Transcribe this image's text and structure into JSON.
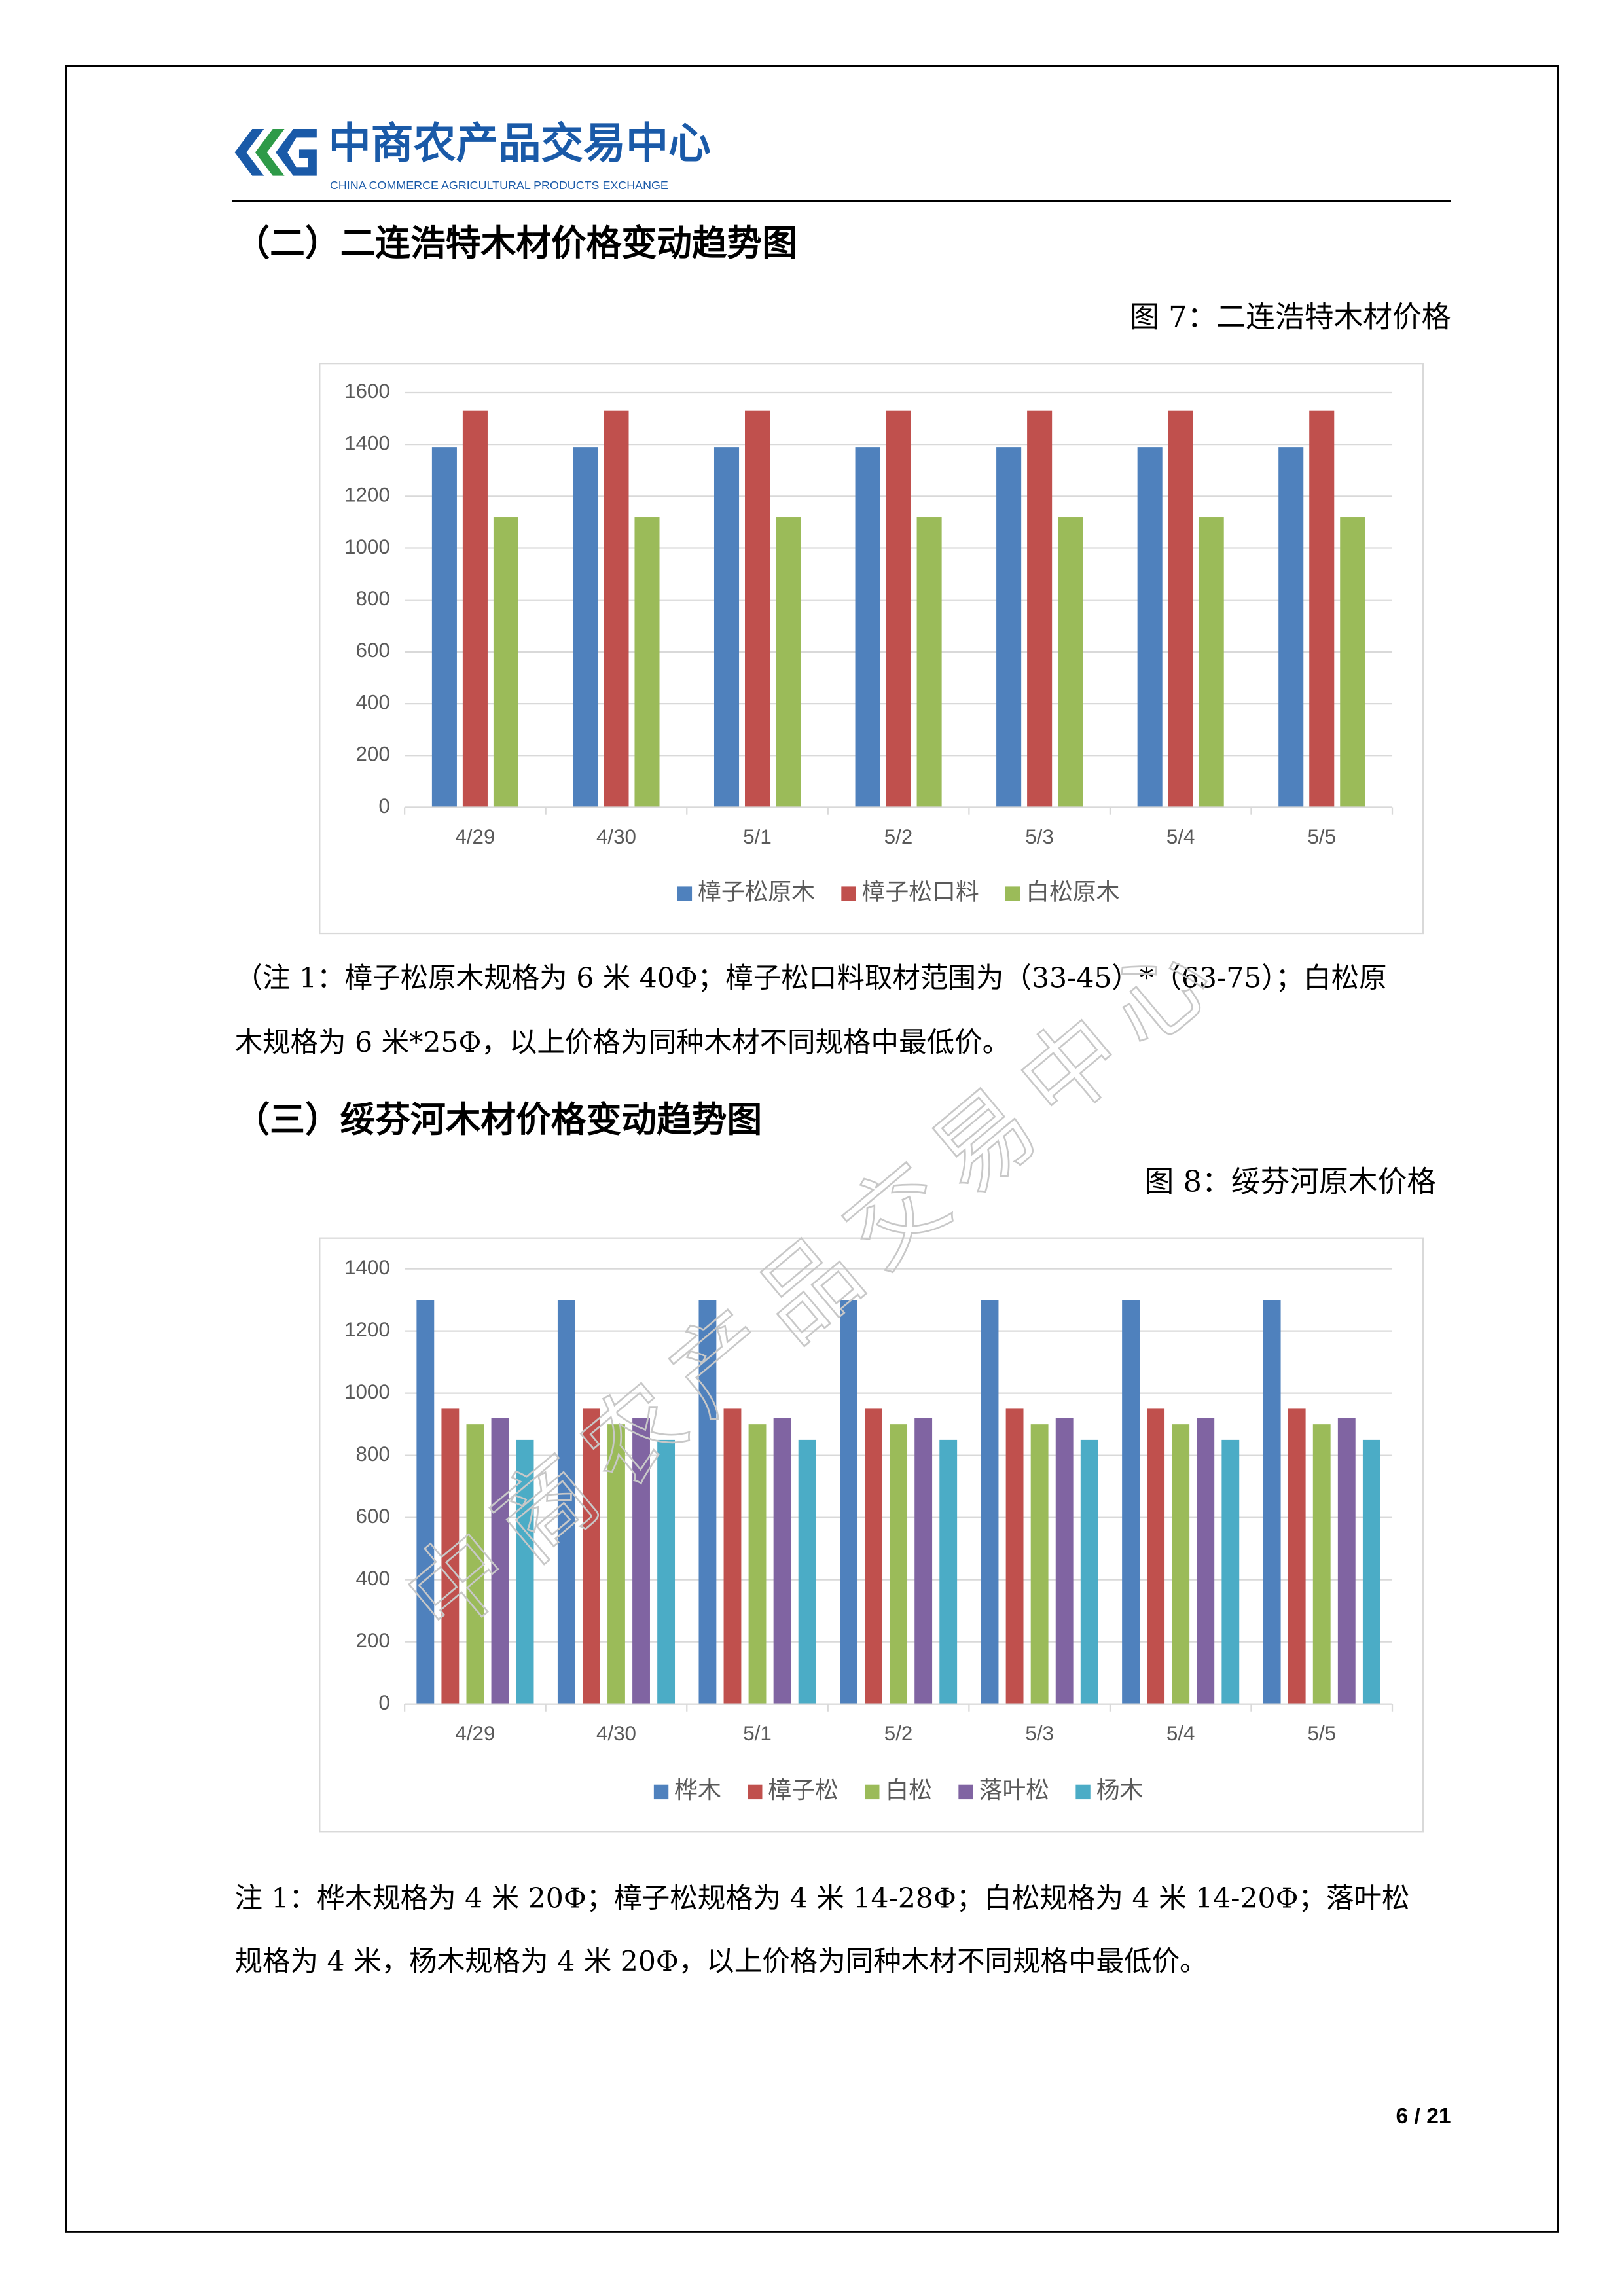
{
  "header": {
    "logo": "中商农产品交易中心",
    "logo_en": "CHINA COMMERCE AGRICULTURAL PRODUCTS EXCHANGE"
  },
  "sections": [
    {
      "heading": "（二）二连浩特木材价格变动趋势图",
      "note": [
        "（注 1：樟子松原木规格为 6 米 40Φ；樟子松口料取材范围为（33-45）*（63-75）；白松原",
        "木规格为 6 米*25Φ，以上价格为同种木材不同规格中最低价。"
      ]
    },
    {
      "heading": "（三）绥芬河木材价格变动趋势图",
      "note": [
        "注 1：桦木规格为 4 米 20Φ；樟子松规格为 4 米 14-28Φ；白松规格为 4 米 14-20Φ；落叶松",
        "规格为 4 米，杨木规格为 4 米 20Φ，以上价格为同种木材不同规格中最低价。"
      ]
    }
  ],
  "chart_data": [
    {
      "type": "bar",
      "title": "图 7：二连浩特木材价格",
      "categories": [
        "4/29",
        "4/30",
        "5/1",
        "5/2",
        "5/3",
        "5/4",
        "5/5"
      ],
      "series": [
        {
          "name": "樟子松原木",
          "color": "#4f81bd",
          "values": [
            1390,
            1390,
            1390,
            1390,
            1390,
            1390,
            1390
          ]
        },
        {
          "name": "樟子松口料",
          "color": "#c0504d",
          "values": [
            1530,
            1530,
            1530,
            1530,
            1530,
            1530,
            1530
          ]
        },
        {
          "name": "白松原木",
          "color": "#9bbb59",
          "values": [
            1120,
            1120,
            1120,
            1120,
            1120,
            1120,
            1120
          ]
        }
      ],
      "ylim": [
        0,
        1600
      ],
      "yticks": [
        0,
        200,
        400,
        600,
        800,
        1000,
        1200,
        1400,
        1600
      ],
      "grid": true,
      "legend": "bottom"
    },
    {
      "type": "bar",
      "title": "图 8：绥芬河原木价格",
      "categories": [
        "4/29",
        "4/30",
        "5/1",
        "5/2",
        "5/3",
        "5/4",
        "5/5"
      ],
      "series": [
        {
          "name": "桦木",
          "color": "#4f81bd",
          "values": [
            1300,
            1300,
            1300,
            1300,
            1300,
            1300,
            1300
          ]
        },
        {
          "name": "樟子松",
          "color": "#c0504d",
          "values": [
            950,
            950,
            950,
            950,
            950,
            950,
            950
          ]
        },
        {
          "name": "白松",
          "color": "#9bbb59",
          "values": [
            900,
            900,
            900,
            900,
            900,
            900,
            900
          ]
        },
        {
          "name": "落叶松",
          "color": "#8064a2",
          "values": [
            920,
            920,
            920,
            920,
            920,
            920,
            920
          ]
        },
        {
          "name": "杨木",
          "color": "#4bacc6",
          "values": [
            850,
            850,
            850,
            850,
            850,
            850,
            850
          ]
        }
      ],
      "ylim": [
        0,
        1400
      ],
      "yticks": [
        0,
        200,
        400,
        600,
        800,
        1000,
        1200,
        1400
      ],
      "grid": true,
      "legend": "bottom"
    }
  ],
  "watermark": "中商农产品交易中心",
  "page_number": "6 / 21"
}
